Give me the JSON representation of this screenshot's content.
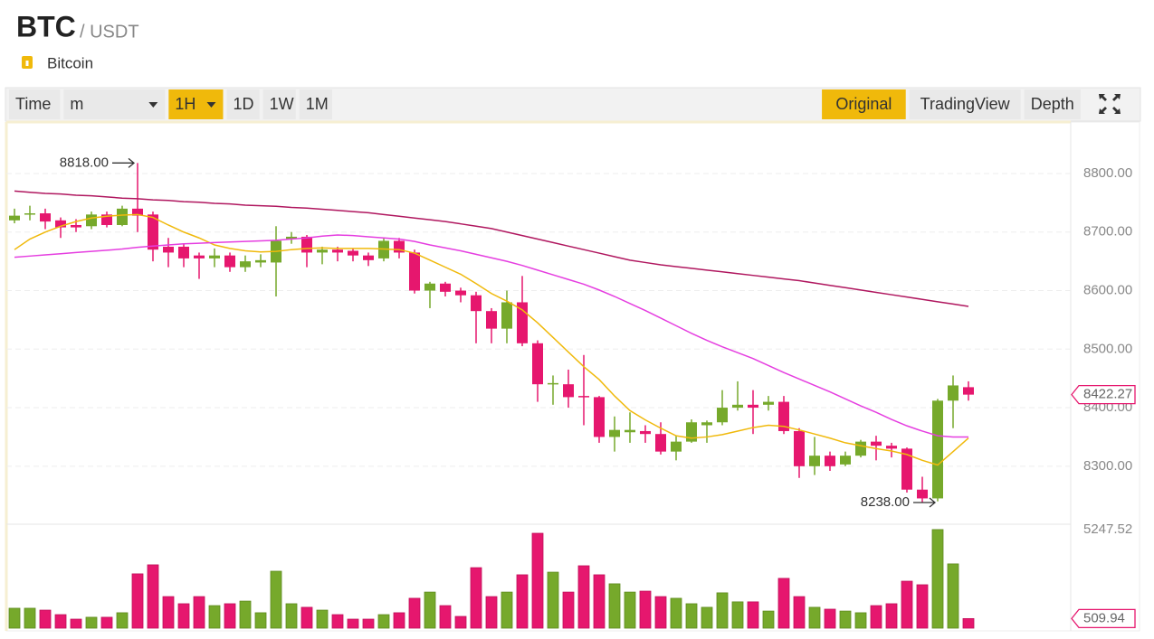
{
  "header": {
    "symbol": "BTC",
    "quote": "/ USDT",
    "name": "Bitcoin"
  },
  "toolbar": {
    "left": [
      "Time",
      "m",
      "1H",
      "1D",
      "1W",
      "1M"
    ],
    "selected_interval": "1H",
    "right": [
      "Original",
      "TradingView",
      "Depth"
    ],
    "selected_view": "Original"
  },
  "chart_data": {
    "type": "candlestick",
    "colors": {
      "up": "#76a92b",
      "down": "#e6176e"
    },
    "ylim": [
      8204,
      8888
    ],
    "yticks": [
      {
        "value": 8300,
        "label": "8300.00"
      },
      {
        "value": 8400,
        "label": "8400.00"
      },
      {
        "value": 8500,
        "label": "8500.00"
      },
      {
        "value": 8600,
        "label": "8600.00"
      },
      {
        "value": 8700,
        "label": "8700.00"
      },
      {
        "value": 8800,
        "label": "8800.00"
      }
    ],
    "grid": true,
    "ohlc": {
      "open": [
        8720,
        8730,
        8732,
        8720,
        8712,
        8710,
        8730,
        8712,
        8740,
        8730,
        8675,
        8675,
        8660,
        8655,
        8660,
        8640,
        8648,
        8648,
        8688,
        8692,
        8665,
        8670,
        8668,
        8660,
        8655,
        8685,
        8665,
        8600,
        8612,
        8600,
        8592,
        8565,
        8535,
        8580,
        8510,
        8440,
        8440,
        8420,
        8418,
        8350,
        8358,
        8360,
        8355,
        8325,
        8342,
        8370,
        8375,
        8400,
        8405,
        8405,
        8410,
        8360,
        8300,
        8318,
        8303,
        8318,
        8342,
        8335,
        8330,
        8260,
        8245,
        8412,
        8435
      ],
      "high": [
        8740,
        8745,
        8740,
        8725,
        8722,
        8735,
        8735,
        8745,
        8818,
        8735,
        8690,
        8680,
        8665,
        8672,
        8665,
        8660,
        8662,
        8710,
        8700,
        8695,
        8675,
        8675,
        8672,
        8665,
        8690,
        8690,
        8670,
        8615,
        8615,
        8605,
        8598,
        8570,
        8600,
        8625,
        8515,
        8455,
        8465,
        8490,
        8420,
        8385,
        8392,
        8370,
        8375,
        8352,
        8380,
        8378,
        8430,
        8445,
        8430,
        8420,
        8420,
        8365,
        8350,
        8325,
        8325,
        8345,
        8352,
        8340,
        8332,
        8282,
        8415,
        8455,
        8445
      ],
      "low": [
        8715,
        8720,
        8705,
        8690,
        8700,
        8705,
        8708,
        8710,
        8700,
        8650,
        8640,
        8640,
        8620,
        8640,
        8632,
        8632,
        8640,
        8590,
        8680,
        8640,
        8645,
        8650,
        8650,
        8642,
        8650,
        8655,
        8595,
        8570,
        8590,
        8580,
        8510,
        8510,
        8510,
        8505,
        8410,
        8405,
        8400,
        8370,
        8340,
        8325,
        8340,
        8340,
        8320,
        8310,
        8340,
        8340,
        8370,
        8395,
        8355,
        8395,
        8355,
        8280,
        8285,
        8292,
        8300,
        8315,
        8310,
        8315,
        8255,
        8238,
        8240,
        8365,
        8412
      ],
      "close": [
        8728,
        8732,
        8718,
        8708,
        8708,
        8730,
        8712,
        8740,
        8728,
        8670,
        8665,
        8655,
        8655,
        8660,
        8640,
        8650,
        8652,
        8685,
        8692,
        8665,
        8670,
        8665,
        8660,
        8652,
        8685,
        8665,
        8600,
        8612,
        8598,
        8592,
        8565,
        8535,
        8580,
        8510,
        8440,
        8442,
        8418,
        8418,
        8350,
        8362,
        8362,
        8355,
        8325,
        8342,
        8375,
        8375,
        8400,
        8405,
        8400,
        8410,
        8360,
        8300,
        8318,
        8300,
        8318,
        8342,
        8335,
        8330,
        8260,
        8245,
        8412,
        8438,
        8422.27
      ]
    },
    "moving_averages": [
      {
        "color": "#f0b90b",
        "values": [
          8670,
          8688,
          8700,
          8710,
          8718,
          8724,
          8727,
          8729,
          8730,
          8725,
          8712,
          8700,
          8690,
          8678,
          8672,
          8668,
          8666,
          8667,
          8670,
          8672,
          8673,
          8672,
          8672,
          8672,
          8671,
          8670,
          8664,
          8652,
          8640,
          8628,
          8612,
          8595,
          8582,
          8567,
          8545,
          8520,
          8495,
          8470,
          8448,
          8420,
          8395,
          8379,
          8365,
          8352,
          8348,
          8350,
          8354,
          8360,
          8366,
          8370,
          8368,
          8362,
          8355,
          8348,
          8340,
          8335,
          8330,
          8326,
          8320,
          8310,
          8302,
          8325,
          8348
        ]
      },
      {
        "color": "#e53ee0",
        "values": [
          8657,
          8659,
          8661,
          8663,
          8665,
          8667,
          8669,
          8671,
          8674,
          8676,
          8678,
          8680,
          8681,
          8682,
          8683,
          8684,
          8685,
          8686,
          8688,
          8690,
          8693,
          8695,
          8694,
          8692,
          8690,
          8688,
          8684,
          8678,
          8673,
          8668,
          8662,
          8656,
          8650,
          8643,
          8635,
          8627,
          8619,
          8611,
          8601,
          8590,
          8578,
          8566,
          8553,
          8540,
          8527,
          8515,
          8504,
          8494,
          8484,
          8472,
          8460,
          8449,
          8438,
          8427,
          8415,
          8403,
          8392,
          8380,
          8369,
          8360,
          8352,
          8350,
          8350
        ]
      },
      {
        "color": "#b0175f",
        "values": [
          8770,
          8768,
          8766,
          8765,
          8763,
          8762,
          8760,
          8758,
          8757,
          8755,
          8754,
          8752,
          8751,
          8749,
          8748,
          8746,
          8745,
          8744,
          8742,
          8741,
          8739,
          8737,
          8735,
          8733,
          8730,
          8727,
          8724,
          8721,
          8718,
          8714,
          8710,
          8706,
          8700,
          8694,
          8688,
          8682,
          8676,
          8670,
          8664,
          8658,
          8652,
          8648,
          8644,
          8641,
          8638,
          8635,
          8632,
          8629,
          8626,
          8623,
          8620,
          8617,
          8613,
          8609,
          8605,
          8601,
          8597,
          8593,
          8589,
          8585,
          8581,
          8577,
          8573
        ]
      }
    ],
    "high_label": {
      "value": 8818,
      "label": "8818.00"
    },
    "low_label": {
      "value": 8238,
      "label": "8238.00"
    },
    "last_price": 8422.27,
    "volume": {
      "ylim": [
        0,
        5436
      ],
      "values": [
        1060,
        1060,
        960,
        720,
        480,
        580,
        580,
        820,
        2890,
        3370,
        1680,
        1300,
        1680,
        1200,
        1300,
        1440,
        820,
        3030,
        1300,
        1110,
        960,
        720,
        480,
        480,
        720,
        820,
        1590,
        1920,
        1200,
        625,
        3220,
        1680,
        1920,
        2840,
        5050,
        2980,
        1920,
        3320,
        2840,
        2360,
        1920,
        1970,
        1680,
        1590,
        1300,
        1110,
        1880,
        1400,
        1400,
        910,
        2650,
        1680,
        1110,
        1010,
        910,
        820,
        1200,
        1300,
        2500,
        2310,
        5247.52,
        3420,
        509.94
      ],
      "max_label": 5247.52,
      "last_label": 509.94
    }
  }
}
